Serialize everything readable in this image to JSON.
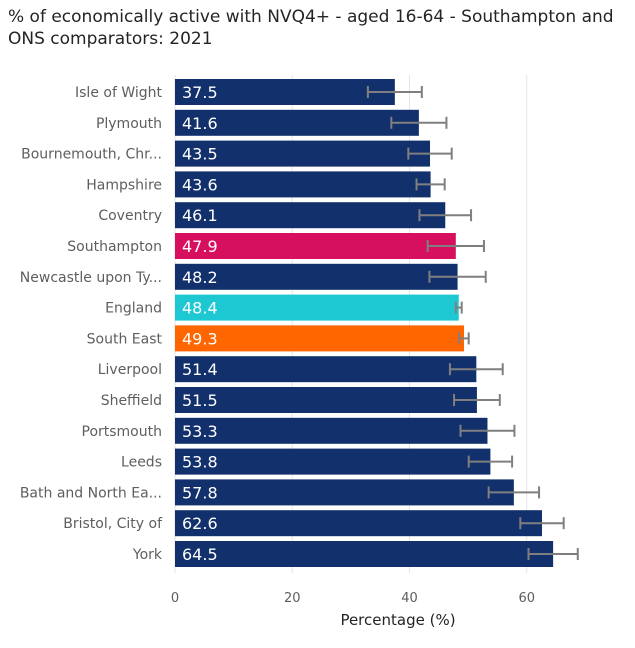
{
  "chart_data": {
    "type": "bar",
    "orientation": "horizontal",
    "title": "% of economically active with NVQ4+ - aged 16-64 - Southampton and ONS comparators: 2021",
    "xlabel": "Percentage (%)",
    "ylabel": "",
    "xlim": [
      0,
      72
    ],
    "xticks": [
      0,
      20,
      40,
      60
    ],
    "grid": true,
    "legend": "none",
    "categories": [
      "Isle of Wight",
      "Plymouth",
      "Bournemouth, Chr...",
      "Hampshire",
      "Coventry",
      "Southampton",
      "Newcastle upon Ty...",
      "England",
      "South East",
      "Liverpool",
      "Sheffield",
      "Portsmouth",
      "Leeds",
      "Bath and North Ea...",
      "Bristol, City of",
      "York"
    ],
    "values": [
      37.5,
      41.6,
      43.5,
      43.6,
      46.1,
      47.9,
      48.2,
      48.4,
      49.3,
      51.4,
      51.5,
      53.3,
      53.8,
      57.8,
      62.6,
      64.5
    ],
    "value_labels": [
      "37.5",
      "41.6",
      "43.5",
      "43.6",
      "46.1",
      "47.9",
      "48.2",
      "48.4",
      "49.3",
      "51.4",
      "51.5",
      "53.3",
      "53.8",
      "57.8",
      "62.6",
      "64.5"
    ],
    "error_low": [
      32.9,
      36.9,
      39.8,
      41.2,
      41.7,
      43.1,
      43.4,
      47.9,
      48.5,
      46.9,
      47.6,
      48.7,
      50.1,
      53.5,
      58.9,
      60.3
    ],
    "error_high": [
      42.1,
      46.3,
      47.2,
      46.0,
      50.5,
      52.7,
      53.0,
      48.9,
      50.1,
      55.9,
      55.4,
      57.9,
      57.5,
      62.1,
      66.3,
      68.7
    ],
    "colors": [
      "#12306c",
      "#12306c",
      "#12306c",
      "#12306c",
      "#12306c",
      "#d6105e",
      "#12306c",
      "#1ec8d2",
      "#ff6600",
      "#12306c",
      "#12306c",
      "#12306c",
      "#12306c",
      "#12306c",
      "#12306c",
      "#12306c"
    ],
    "error_bar_color": "#7f7f7f",
    "gridline_color": "#e6e6e6"
  }
}
